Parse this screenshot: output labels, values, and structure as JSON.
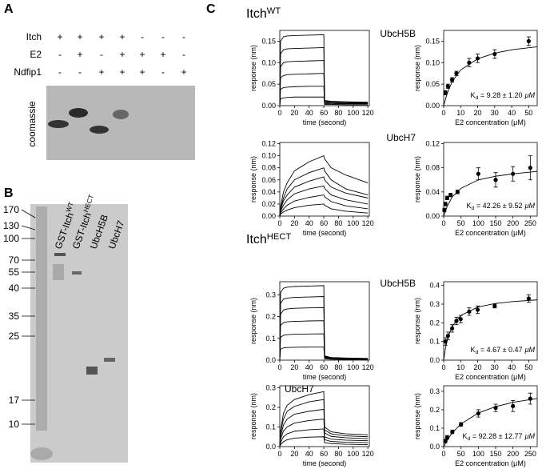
{
  "panel_a": {
    "label": "A",
    "rows": [
      {
        "name": "Itch",
        "signs": [
          "+",
          "+",
          "+",
          "+",
          "-",
          "-",
          "-"
        ]
      },
      {
        "name": "E2",
        "signs": [
          "-",
          "+",
          "-",
          "+",
          "+",
          "+",
          "-"
        ]
      },
      {
        "name": "Ndfip1",
        "signs": [
          "-",
          "-",
          "+",
          "+",
          "+",
          "-",
          "+"
        ]
      }
    ],
    "gel_label": "coomassie"
  },
  "panel_b": {
    "label": "B",
    "markers": [
      170,
      130,
      100,
      70,
      55,
      40,
      35,
      25,
      17,
      10
    ],
    "lanes": [
      {
        "name": "GST-Itch",
        "sup": "WT"
      },
      {
        "name": "GST-Itch",
        "sup": "HECT"
      },
      {
        "name": "UbcH5B"
      },
      {
        "name": "UbcH7"
      }
    ]
  },
  "panel_c": {
    "label": "C",
    "sections": [
      {
        "name": "Itch",
        "sup": "WT"
      },
      {
        "name": "Itch",
        "sup": "HECT"
      }
    ]
  },
  "chart_data": [
    {
      "type": "line",
      "title": "UbcH5B",
      "x_label": "time (second)",
      "y_label": "response (nm)",
      "color": "#000000",
      "x": [
        0,
        1,
        5,
        10,
        20,
        40,
        60,
        61,
        70,
        90,
        120
      ],
      "xlim": [
        0,
        122
      ],
      "xticks": [
        0,
        20,
        40,
        60,
        80,
        100,
        120
      ],
      "ylim": [
        0,
        0.175
      ],
      "yticks": [
        {
          "value": 0,
          "label": "0.00"
        },
        {
          "value": 0.05,
          "label": "0.05"
        },
        {
          "value": 0.1,
          "label": "0.10"
        },
        {
          "value": 0.15,
          "label": "0.15"
        }
      ],
      "series": [
        {
          "values": [
            0,
            0.15,
            0.16,
            0.162,
            0.163,
            0.164,
            0.165,
            0.012,
            0.01,
            0.009,
            0.008
          ]
        },
        {
          "values": [
            0,
            0.12,
            0.13,
            0.132,
            0.133,
            0.134,
            0.135,
            0.01,
            0.009,
            0.008,
            0.007
          ]
        },
        {
          "values": [
            0,
            0.09,
            0.1,
            0.102,
            0.103,
            0.104,
            0.105,
            0.009,
            0.008,
            0.007,
            0.006
          ]
        },
        {
          "values": [
            0,
            0.065,
            0.07,
            0.072,
            0.073,
            0.074,
            0.075,
            0.007,
            0.006,
            0.005,
            0.005
          ]
        },
        {
          "values": [
            0,
            0.038,
            0.042,
            0.043,
            0.044,
            0.045,
            0.045,
            0.005,
            0.004,
            0.004,
            0.004
          ]
        },
        {
          "values": [
            0,
            0.016,
            0.018,
            0.019,
            0.02,
            0.02,
            0.02,
            0.003,
            0.003,
            0.002,
            0.002
          ]
        }
      ]
    },
    {
      "type": "scatter",
      "x_label": "E2 concentration (μM)",
      "y_label": "response (nm)",
      "color": "#000000",
      "annotation": {
        "symbol": "K",
        "subscript": "d",
        "text": " = 9.28 ± 1.20",
        "unit": "μM"
      },
      "x": [
        1,
        2.5,
        5,
        7.5,
        15,
        20,
        30,
        50
      ],
      "values": [
        0.03,
        0.045,
        0.06,
        0.075,
        0.1,
        0.11,
        0.12,
        0.15
      ],
      "errors": [
        0.005,
        0.005,
        0.005,
        0.005,
        0.01,
        0.01,
        0.01,
        0.01
      ],
      "fit": {
        "x": [
          0,
          2,
          5,
          10,
          20,
          30,
          40,
          55
        ],
        "values": [
          0,
          0.028,
          0.056,
          0.083,
          0.109,
          0.122,
          0.13,
          0.137
        ]
      },
      "xlim": [
        0,
        55
      ],
      "xticks": [
        0,
        10,
        20,
        30,
        40,
        50
      ],
      "ylim": [
        0,
        0.175
      ],
      "yticks": [
        {
          "value": 0,
          "label": "0.00"
        },
        {
          "value": 0.05,
          "label": "0.05"
        },
        {
          "value": 0.1,
          "label": "0.10"
        },
        {
          "value": 0.15,
          "label": "0.15"
        }
      ]
    },
    {
      "type": "line",
      "title": "UbcH7",
      "x_label": "time (second)",
      "y_label": "response (nm)",
      "color": "#000000",
      "x": [
        0,
        1,
        5,
        10,
        20,
        40,
        60,
        61,
        70,
        90,
        120
      ],
      "xlim": [
        0,
        122
      ],
      "xticks": [
        0,
        20,
        40,
        60,
        80,
        100,
        120
      ],
      "ylim": [
        0,
        0.122
      ],
      "yticks": [
        {
          "value": 0,
          "label": "0.00"
        },
        {
          "value": 0.02,
          "label": "0.02"
        },
        {
          "value": 0.04,
          "label": "0.04"
        },
        {
          "value": 0.06,
          "label": "0.06"
        },
        {
          "value": 0.08,
          "label": "0.08"
        },
        {
          "value": 0.1,
          "label": "0.10"
        },
        {
          "value": 0.12,
          "label": "0.12"
        }
      ],
      "series": [
        {
          "values": [
            0,
            0.015,
            0.04,
            0.055,
            0.075,
            0.09,
            0.1,
            0.095,
            0.08,
            0.068,
            0.055
          ]
        },
        {
          "values": [
            0,
            0.012,
            0.03,
            0.045,
            0.06,
            0.072,
            0.08,
            0.075,
            0.06,
            0.045,
            0.035
          ]
        },
        {
          "values": [
            0,
            0.01,
            0.025,
            0.035,
            0.048,
            0.058,
            0.065,
            0.06,
            0.048,
            0.038,
            0.03
          ]
        },
        {
          "values": [
            0,
            0.008,
            0.018,
            0.027,
            0.037,
            0.045,
            0.05,
            0.046,
            0.035,
            0.027,
            0.02
          ]
        },
        {
          "values": [
            0,
            0.005,
            0.012,
            0.018,
            0.025,
            0.031,
            0.035,
            0.032,
            0.024,
            0.017,
            0.012
          ]
        },
        {
          "values": [
            0,
            0.003,
            0.007,
            0.01,
            0.014,
            0.018,
            0.02,
            0.018,
            0.012,
            0.008,
            0.005
          ]
        }
      ]
    },
    {
      "type": "scatter",
      "x_label": "E2 concentration (μM)",
      "y_label": "response (nm)",
      "color": "#000000",
      "annotation": {
        "symbol": "K",
        "subscript": "d",
        "text": " = 42.26 ± 9.52",
        "unit": "μM"
      },
      "x": [
        2,
        5,
        10,
        20,
        40,
        100,
        150,
        200,
        250
      ],
      "values": [
        0.01,
        0.02,
        0.03,
        0.035,
        0.04,
        0.07,
        0.06,
        0.07,
        0.08
      ],
      "errors": [
        0.003,
        0.003,
        0.003,
        0.003,
        0.003,
        0.01,
        0.012,
        0.012,
        0.02
      ],
      "fit": {
        "x": [
          0,
          10,
          25,
          50,
          100,
          150,
          200,
          270
        ],
        "values": [
          0,
          0.016,
          0.032,
          0.046,
          0.06,
          0.066,
          0.07,
          0.074
        ]
      },
      "xlim": [
        0,
        270
      ],
      "xticks": [
        0,
        50,
        100,
        150,
        200,
        250
      ],
      "ylim": [
        0,
        0.122
      ],
      "yticks": [
        {
          "value": 0,
          "label": "0.00"
        },
        {
          "value": 0.04,
          "label": "0.04"
        },
        {
          "value": 0.08,
          "label": "0.08"
        },
        {
          "value": 0.12,
          "label": "0.12"
        }
      ]
    },
    {
      "type": "line",
      "title": "UbcH5B",
      "x_label": "time (second)",
      "y_label": "response (nm)",
      "color": "#000000",
      "x": [
        0,
        1,
        5,
        10,
        20,
        40,
        60,
        61,
        70,
        90,
        120
      ],
      "xlim": [
        0,
        122
      ],
      "xticks": [
        0,
        20,
        40,
        60,
        80,
        100,
        120
      ],
      "ylim": [
        0,
        0.36
      ],
      "yticks": [
        {
          "value": 0,
          "label": "0.0"
        },
        {
          "value": 0.1,
          "label": "0.1"
        },
        {
          "value": 0.2,
          "label": "0.2"
        },
        {
          "value": 0.3,
          "label": "0.3"
        }
      ],
      "series": [
        {
          "values": [
            0,
            0.31,
            0.33,
            0.335,
            0.338,
            0.34,
            0.342,
            0.02,
            0.012,
            0.01,
            0.008
          ]
        },
        {
          "values": [
            0,
            0.26,
            0.28,
            0.285,
            0.288,
            0.29,
            0.292,
            0.018,
            0.011,
            0.009,
            0.007
          ]
        },
        {
          "values": [
            0,
            0.21,
            0.23,
            0.235,
            0.238,
            0.24,
            0.241,
            0.016,
            0.01,
            0.008,
            0.006
          ]
        },
        {
          "values": [
            0,
            0.16,
            0.172,
            0.176,
            0.178,
            0.18,
            0.181,
            0.013,
            0.009,
            0.007,
            0.005
          ]
        },
        {
          "values": [
            0,
            0.105,
            0.114,
            0.117,
            0.119,
            0.12,
            0.121,
            0.01,
            0.007,
            0.005,
            0.004
          ]
        },
        {
          "values": [
            0,
            0.05,
            0.056,
            0.058,
            0.059,
            0.06,
            0.06,
            0.006,
            0.004,
            0.003,
            0.003
          ]
        }
      ]
    },
    {
      "type": "scatter",
      "x_label": "E2 concentration (μM)",
      "y_label": "response (nm)",
      "color": "#000000",
      "annotation": {
        "symbol": "K",
        "subscript": "d",
        "text": " = 4.67 ± 0.47",
        "unit": "μM"
      },
      "x": [
        1,
        2.5,
        5,
        7.5,
        10,
        15,
        20,
        30,
        50
      ],
      "values": [
        0.1,
        0.13,
        0.17,
        0.21,
        0.22,
        0.26,
        0.27,
        0.29,
        0.33
      ],
      "errors": [
        0.02,
        0.02,
        0.02,
        0.02,
        0.02,
        0.02,
        0.02,
        0.01,
        0.02
      ],
      "fit": {
        "x": [
          0,
          1,
          2.5,
          5,
          10,
          20,
          30,
          40,
          55
        ],
        "values": [
          0,
          0.062,
          0.122,
          0.181,
          0.239,
          0.284,
          0.303,
          0.313,
          0.323
        ]
      },
      "xlim": [
        0,
        55
      ],
      "xticks": [
        0,
        10,
        20,
        30,
        40,
        50
      ],
      "ylim": [
        0,
        0.42
      ],
      "yticks": [
        {
          "value": 0,
          "label": "0.0"
        },
        {
          "value": 0.1,
          "label": "0.1"
        },
        {
          "value": 0.2,
          "label": "0.2"
        },
        {
          "value": 0.3,
          "label": "0.3"
        },
        {
          "value": 0.4,
          "label": "0.4"
        }
      ]
    },
    {
      "type": "line",
      "title": "UbcH7",
      "x_label": "time (second)",
      "y_label": "response (nm)",
      "color": "#000000",
      "x": [
        0,
        1,
        5,
        10,
        20,
        40,
        60,
        61,
        70,
        90,
        120
      ],
      "xlim": [
        0,
        122
      ],
      "xticks": [
        0,
        20,
        40,
        60,
        80,
        100,
        120
      ],
      "ylim": [
        0,
        0.31
      ],
      "yticks": [
        {
          "value": 0,
          "label": "0.0"
        },
        {
          "value": 0.1,
          "label": "0.1"
        },
        {
          "value": 0.2,
          "label": "0.2"
        },
        {
          "value": 0.3,
          "label": "0.3"
        }
      ],
      "series": [
        {
          "values": [
            0,
            0.08,
            0.17,
            0.21,
            0.24,
            0.265,
            0.28,
            0.1,
            0.075,
            0.065,
            0.06
          ]
        },
        {
          "values": [
            0,
            0.07,
            0.14,
            0.18,
            0.205,
            0.228,
            0.24,
            0.085,
            0.065,
            0.055,
            0.05
          ]
        },
        {
          "values": [
            0,
            0.05,
            0.11,
            0.14,
            0.165,
            0.18,
            0.19,
            0.07,
            0.052,
            0.045,
            0.04
          ]
        },
        {
          "values": [
            0,
            0.035,
            0.08,
            0.1,
            0.12,
            0.133,
            0.14,
            0.05,
            0.038,
            0.033,
            0.03
          ]
        },
        {
          "values": [
            0,
            0.02,
            0.05,
            0.065,
            0.078,
            0.086,
            0.09,
            0.035,
            0.026,
            0.022,
            0.02
          ]
        },
        {
          "values": [
            0,
            0.01,
            0.025,
            0.035,
            0.043,
            0.048,
            0.05,
            0.02,
            0.015,
            0.012,
            0.01
          ]
        }
      ]
    },
    {
      "type": "scatter",
      "x_label": "E2 concentration (μM)",
      "y_label": "response (nm)",
      "color": "#000000",
      "annotation": {
        "symbol": "K",
        "subscript": "d",
        "text": " = 92.28 ± 12.77",
        "unit": "μM"
      },
      "x": [
        5,
        10,
        25,
        50,
        100,
        150,
        200,
        250
      ],
      "values": [
        0.03,
        0.05,
        0.08,
        0.12,
        0.18,
        0.21,
        0.22,
        0.26
      ],
      "errors": [
        0.01,
        0.01,
        0.01,
        0.01,
        0.02,
        0.02,
        0.03,
        0.03
      ],
      "fit": {
        "x": [
          0,
          10,
          25,
          50,
          100,
          150,
          200,
          270
        ],
        "values": [
          0,
          0.034,
          0.075,
          0.123,
          0.182,
          0.217,
          0.24,
          0.261
        ]
      },
      "xlim": [
        0,
        270
      ],
      "xticks": [
        0,
        50,
        100,
        150,
        200,
        250
      ],
      "ylim": [
        0,
        0.33
      ],
      "yticks": [
        {
          "value": 0,
          "label": "0.0"
        },
        {
          "value": 0.1,
          "label": "0.1"
        },
        {
          "value": 0.2,
          "label": "0.2"
        },
        {
          "value": 0.3,
          "label": "0.3"
        }
      ]
    }
  ]
}
